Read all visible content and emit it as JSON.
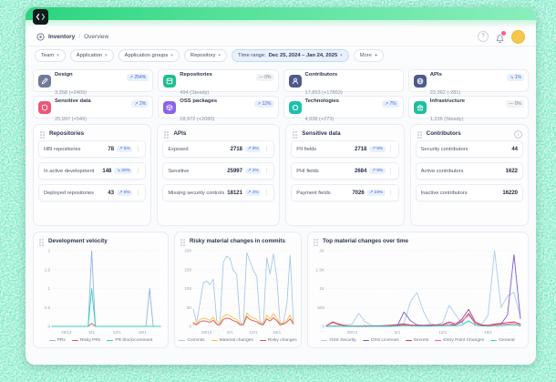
{
  "header": {
    "breadcrumb": {
      "section": "Inventory",
      "divider": "/",
      "page": "Overview"
    },
    "help_icon": "?"
  },
  "filters": {
    "dropdowns": [
      {
        "label": "Team"
      },
      {
        "label": "Application"
      },
      {
        "label": "Application groups"
      },
      {
        "label": "Repository"
      }
    ],
    "time_range": {
      "label": "Time range:",
      "value": "Dec 25, 2024 – Jan 24, 2025"
    },
    "more": {
      "label": "More",
      "icon": "+"
    }
  },
  "metric_cards": [
    {
      "title": "Design",
      "value": "3,358 (+2409)",
      "trend": "↗ 254%",
      "kind": "up",
      "color": "#6f7b9b"
    },
    {
      "title": "Repositories",
      "value": "494 (Steady)",
      "trend": "— 0%",
      "kind": "flat",
      "color": "#1fbf92"
    },
    {
      "title": "Contributors",
      "value": "17,853 (+17853)",
      "trend": "",
      "kind": "none",
      "color": "#4d5b8c"
    },
    {
      "title": "APIs",
      "value": "22,362 (-281)",
      "trend": "↘ 1%",
      "kind": "down",
      "color": "#4d5b8c"
    },
    {
      "title": "Sensitive data",
      "value": "25,997 (+549)",
      "trend": "↗ 2%",
      "kind": "up",
      "color": "#f0557a"
    },
    {
      "title": "OSS packages",
      "value": "18,972 (+2080)",
      "trend": "↗ 12%",
      "kind": "up",
      "color": "#8a63e8"
    },
    {
      "title": "Technologies",
      "value": "4,038 (+273)",
      "trend": "↗ 7%",
      "kind": "up",
      "color": "#1fbfae"
    },
    {
      "title": "Infrastructure",
      "value": "1,236 (Steady)",
      "trend": "— 0%",
      "kind": "flat",
      "color": "#1fbf9e"
    }
  ],
  "panels": [
    {
      "title": "Repositories",
      "rows": [
        {
          "label": "HBI repositories",
          "value": "78",
          "trend": "↗ 5%",
          "kind": "up"
        },
        {
          "label": "In active development",
          "value": "148",
          "trend": "↘ 20%",
          "kind": "down"
        },
        {
          "label": "Deployed repositories",
          "value": "43",
          "trend": "↗ 8%",
          "kind": "up"
        }
      ]
    },
    {
      "title": "APIs",
      "rows": [
        {
          "label": "Exposed",
          "value": "2718",
          "trend": "↗ 9%",
          "kind": "up"
        },
        {
          "label": "Sensitive",
          "value": "25997",
          "trend": "↗ 2%",
          "kind": "up"
        },
        {
          "label": "Missing security controls",
          "value": "18121",
          "trend": "↗ 2%",
          "kind": "up"
        }
      ]
    },
    {
      "title": "Sensitive data",
      "rows": [
        {
          "label": "PII fields",
          "value": "2718",
          "trend": "↗ 9%",
          "kind": "up"
        },
        {
          "label": "PHI fields",
          "value": "2684",
          "trend": "↗ 9%",
          "kind": "up"
        },
        {
          "label": "Payment fields",
          "value": "7026",
          "trend": "↗ 19%",
          "kind": "up"
        }
      ]
    },
    {
      "title": "Contributors",
      "info_icon": "i",
      "rows": [
        {
          "label": "Security contributors",
          "value": "44",
          "trend": "",
          "kind": "none"
        },
        {
          "label": "Active contributors",
          "value": "1622",
          "trend": "",
          "kind": "none"
        },
        {
          "label": "Inactive contributors",
          "value": "16220",
          "trend": "",
          "kind": "none"
        }
      ]
    }
  ],
  "chart_data": [
    {
      "type": "line",
      "title": "Development velocity",
      "ymax": 2,
      "ytick_values": [
        0,
        0.5,
        1,
        1.5,
        2
      ],
      "ytick_labels": [
        "0",
        "0.5",
        "1",
        "1.5",
        "2"
      ],
      "xtick_labels": [
        "29/12",
        "5/1",
        "12/1",
        "19/1"
      ],
      "xtick_index": [
        4,
        11,
        18,
        25
      ],
      "x_range": "Dec 25, 2024 – Jan 24, 2025",
      "grid": "dotted-horizontal",
      "legend_position": "bottom",
      "series": [
        {
          "name": "PRs",
          "color": "#8fb4e3",
          "values": [
            0,
            0,
            0,
            0,
            0,
            0,
            0,
            0,
            0,
            0,
            0,
            2,
            0,
            0,
            0,
            0,
            0,
            0,
            0,
            0,
            0,
            0,
            0,
            0,
            0,
            0,
            0,
            1,
            0,
            0,
            0
          ]
        },
        {
          "name": "Risky PRs",
          "color": "#e05252",
          "values": [
            0,
            0,
            0,
            0,
            0,
            0,
            0,
            0,
            0,
            0,
            0,
            0.08,
            0,
            0,
            0,
            0,
            0,
            0,
            0,
            0,
            0,
            0,
            0,
            0,
            0,
            0,
            0,
            0,
            0,
            0,
            0
          ]
        },
        {
          "name": "PR block/comment",
          "color": "#35d0ba",
          "values": [
            0,
            0,
            0,
            0,
            0,
            0,
            0,
            0,
            0,
            0,
            0,
            1,
            0,
            0,
            0,
            0,
            0,
            0,
            0,
            0,
            0,
            0,
            0,
            0,
            0,
            0,
            0,
            0,
            0,
            0,
            0
          ]
        }
      ]
    },
    {
      "type": "line",
      "title": "Risky material changes in commits",
      "ymax": 200,
      "ytick_values": [
        0,
        50,
        100,
        150,
        200
      ],
      "ytick_labels": [
        "0",
        "50",
        "100",
        "150",
        "200"
      ],
      "xtick_labels": [
        "29/12",
        "5/1",
        "12/1",
        "19/1"
      ],
      "xtick_index": [
        4,
        11,
        18,
        25
      ],
      "x_range": "Dec 25, 2024 – Jan 24, 2025",
      "grid": "dotted-horizontal",
      "legend_position": "bottom",
      "series": [
        {
          "name": "Commits",
          "color": "#a9c7e8",
          "values": [
            45,
            10,
            60,
            115,
            120,
            110,
            125,
            15,
            8,
            170,
            185,
            180,
            148,
            138,
            10,
            6,
            195,
            172,
            148,
            132,
            12,
            8,
            182,
            138,
            192,
            128,
            8,
            10,
            58,
            188,
            12
          ]
        },
        {
          "name": "Material changes",
          "color": "#f5c242",
          "values": [
            12,
            5,
            18,
            22,
            20,
            16,
            24,
            8,
            6,
            26,
            32,
            28,
            22,
            18,
            6,
            5,
            36,
            26,
            22,
            18,
            8,
            6,
            30,
            20,
            34,
            22,
            6,
            8,
            16,
            30,
            8
          ]
        },
        {
          "name": "Risky changes",
          "color": "#e05252",
          "values": [
            8,
            4,
            12,
            15,
            13,
            11,
            16,
            5,
            4,
            18,
            22,
            20,
            15,
            12,
            4,
            4,
            26,
            18,
            15,
            12,
            6,
            4,
            20,
            14,
            23,
            15,
            4,
            6,
            11,
            20,
            6
          ]
        }
      ]
    },
    {
      "type": "line",
      "title": "Top material changes over time",
      "ymax": 2000,
      "ytick_values": [
        0,
        500,
        1000,
        1500,
        2000
      ],
      "ytick_labels": [
        "0",
        "500",
        "1K",
        "1.5K",
        "2K"
      ],
      "xtick_labels": [
        "29/12",
        "5/1",
        "12/1",
        "19/1"
      ],
      "xtick_index": [
        4,
        11,
        18,
        25
      ],
      "x_range": "Dec 25, 2024 – Jan 24, 2025",
      "grid": "dotted-horizontal",
      "legend_position": "bottom",
      "series": [
        {
          "name": "OSS Security",
          "color": "#a9cbe8",
          "values": [
            10,
            20,
            30,
            40,
            60,
            350,
            120,
            30,
            20,
            30,
            40,
            60,
            80,
            650,
            900,
            400,
            80,
            40,
            100,
            560,
            300,
            80,
            120,
            60,
            40,
            300,
            2000,
            500,
            800,
            900,
            250
          ]
        },
        {
          "name": "OSS Licenses",
          "color": "#7c5cd6",
          "values": [
            0,
            0,
            0,
            0,
            0,
            0,
            0,
            0,
            0,
            0,
            0,
            20,
            380,
            150,
            40,
            30,
            40,
            30,
            20,
            30,
            40,
            120,
            350,
            80,
            30,
            20,
            40,
            60,
            300,
            1900,
            200
          ]
        },
        {
          "name": "Secrets",
          "color": "#c23b4b",
          "values": [
            20,
            120,
            60,
            20,
            10,
            10,
            20,
            10,
            10,
            20,
            30,
            40,
            60,
            40,
            30,
            20,
            30,
            40,
            50,
            120,
            60,
            200,
            450,
            120,
            40,
            30,
            60,
            80,
            100,
            120,
            60
          ]
        },
        {
          "name": "Entry Point Changes",
          "color": "#f06292",
          "values": [
            10,
            100,
            40,
            10,
            5,
            10,
            10,
            5,
            5,
            10,
            20,
            20,
            40,
            30,
            20,
            10,
            20,
            30,
            40,
            80,
            40,
            150,
            300,
            80,
            20,
            10,
            40,
            50,
            60,
            80,
            40
          ]
        },
        {
          "name": "General",
          "color": "#35d0ba",
          "values": [
            0,
            0,
            0,
            0,
            0,
            5,
            5,
            0,
            0,
            5,
            5,
            5,
            10,
            10,
            5,
            5,
            5,
            10,
            10,
            20,
            10,
            40,
            150,
            30,
            10,
            5,
            10,
            20,
            30,
            40,
            10
          ]
        }
      ]
    }
  ]
}
